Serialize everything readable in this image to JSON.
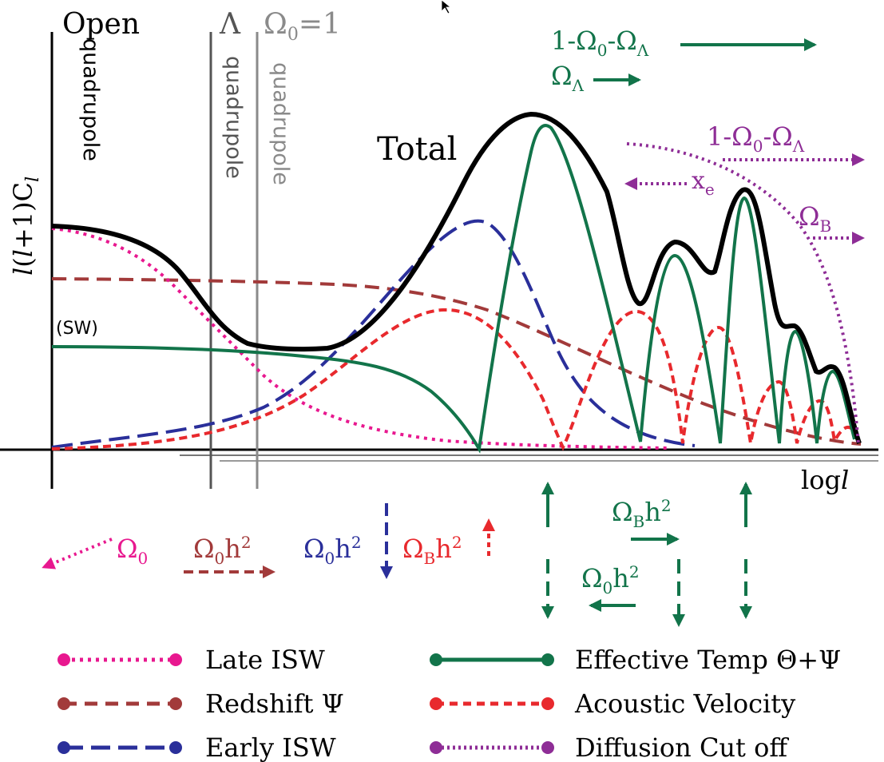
{
  "colors": {
    "total": "#000000",
    "late_isw": "#e8188f",
    "redshift": "#a23a3a",
    "early_isw": "#2a2f9a",
    "effective_temp": "#12744a",
    "acoustic_velocity": "#e8292d",
    "diffusion": "#8e2d96",
    "lambda_line": "#555555",
    "flat_line": "#8a8a8a"
  },
  "markers": {
    "open": "Open",
    "lambda": "Λ",
    "omega0": "Ω",
    "omega0_sub": "0",
    "omega0_eq": "=1",
    "quadrupole": "quadrupole"
  },
  "axes": {
    "y_label_l": "l",
    "y_label_paren": "(",
    "y_label_l2": "l",
    "y_label_rest": "+1)C",
    "y_label_sub": "l",
    "x_label_log": "log",
    "x_label_l": "l"
  },
  "labels": {
    "total": "Total",
    "sw": "(SW)",
    "omega": "Ω",
    "lambda_sub": "Λ",
    "zero_sub": "0",
    "b_sub": "B",
    "one_minus": "1-",
    "dash": "-",
    "h2": "h",
    "sq": "2",
    "x": "x",
    "e_sub": "e"
  },
  "legend": [
    {
      "label": "Late ISW",
      "color": "#e8188f",
      "style": "dotted"
    },
    {
      "label": "Redshift Ψ",
      "color": "#a23a3a",
      "style": "dashed"
    },
    {
      "label": "Early ISW",
      "color": "#2a2f9a",
      "style": "longdash"
    },
    {
      "label": "Effective Temp Θ+Ψ",
      "color": "#12744a",
      "style": "solid"
    },
    {
      "label": "Acoustic Velocity",
      "color": "#e8292d",
      "style": "shortdash"
    },
    {
      "label": "Diffusion Cut off",
      "color": "#8e2d96",
      "style": "dotted"
    }
  ],
  "cursor_icon": "arrow-cursor-icon"
}
